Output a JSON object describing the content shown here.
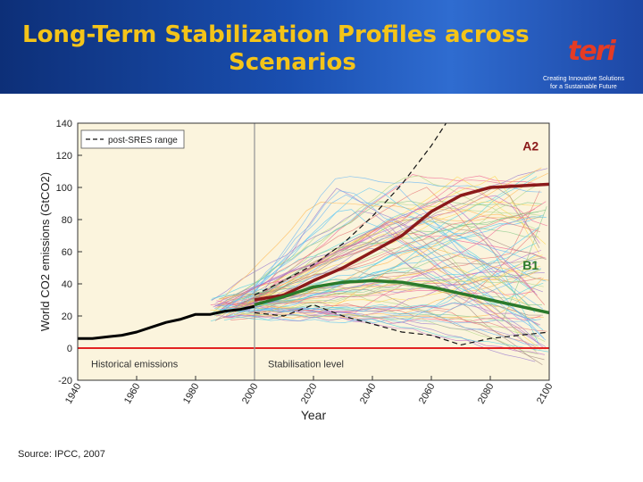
{
  "header": {
    "title_line1": "Long-Term Stabilization Profiles across",
    "title_line2": "Scenarios",
    "logo_text": "teri",
    "logo_tagline_1": "Creating Innovative Solutions",
    "logo_tagline_2": "for a Sustainable Future"
  },
  "colors": {
    "banner": "#1a4fb0",
    "title": "#f4c419",
    "plot_bg": "#fbf4dd",
    "a2_line": "#8b1a1a",
    "b1_line": "#2b7a2b",
    "zero_line": "#e32222",
    "historical": "#000000"
  },
  "chart_data": {
    "type": "line",
    "xlabel": "Year",
    "ylabel": "World CO2 emissions (GtCO2)",
    "xlim": [
      1940,
      2100
    ],
    "ylim": [
      -20,
      140
    ],
    "xticks": [
      "1940",
      "1960",
      "1980",
      "2000",
      "2020",
      "2040",
      "2060",
      "2080",
      "2100"
    ],
    "yticks": [
      "140",
      "120",
      "100",
      "80",
      "60",
      "40",
      "20",
      "0",
      "-20"
    ],
    "legend": {
      "label": "post-SRES range",
      "position": "top-left"
    },
    "annotations": {
      "historical": "Historical emissions",
      "stabilisation": "Stabilisation level",
      "a2": "A2",
      "b1": "B1"
    },
    "vertical_marker_year": 2000,
    "stabilisation_level": 0,
    "series": [
      {
        "name": "Historical emissions",
        "x": [
          1940,
          1945,
          1950,
          1955,
          1960,
          1965,
          1970,
          1975,
          1980,
          1985,
          1990,
          1995,
          2000
        ],
        "y": [
          6,
          6,
          7,
          8,
          10,
          13,
          16,
          18,
          21,
          21,
          23,
          24,
          26
        ]
      },
      {
        "name": "A2",
        "x": [
          2000,
          2010,
          2020,
          2030,
          2040,
          2050,
          2060,
          2070,
          2080,
          2090,
          2100
        ],
        "y": [
          30,
          33,
          42,
          50,
          60,
          70,
          85,
          95,
          100,
          101,
          102
        ]
      },
      {
        "name": "B1",
        "x": [
          2000,
          2010,
          2020,
          2030,
          2040,
          2050,
          2060,
          2070,
          2080,
          2090,
          2100
        ],
        "y": [
          27,
          32,
          38,
          41,
          42,
          41,
          38,
          34,
          30,
          26,
          22
        ]
      },
      {
        "name": "post-SRES range upper",
        "x": [
          2000,
          2010,
          2020,
          2030,
          2040,
          2050,
          2060,
          2065
        ],
        "y": [
          33,
          42,
          52,
          65,
          82,
          102,
          126,
          140
        ]
      },
      {
        "name": "post-SRES range lower",
        "x": [
          2000,
          2010,
          2020,
          2030,
          2040,
          2050,
          2060,
          2070,
          2080,
          2090,
          2100
        ],
        "y": [
          22,
          20,
          27,
          20,
          15,
          10,
          8,
          2,
          6,
          8,
          10
        ]
      }
    ]
  }
}
